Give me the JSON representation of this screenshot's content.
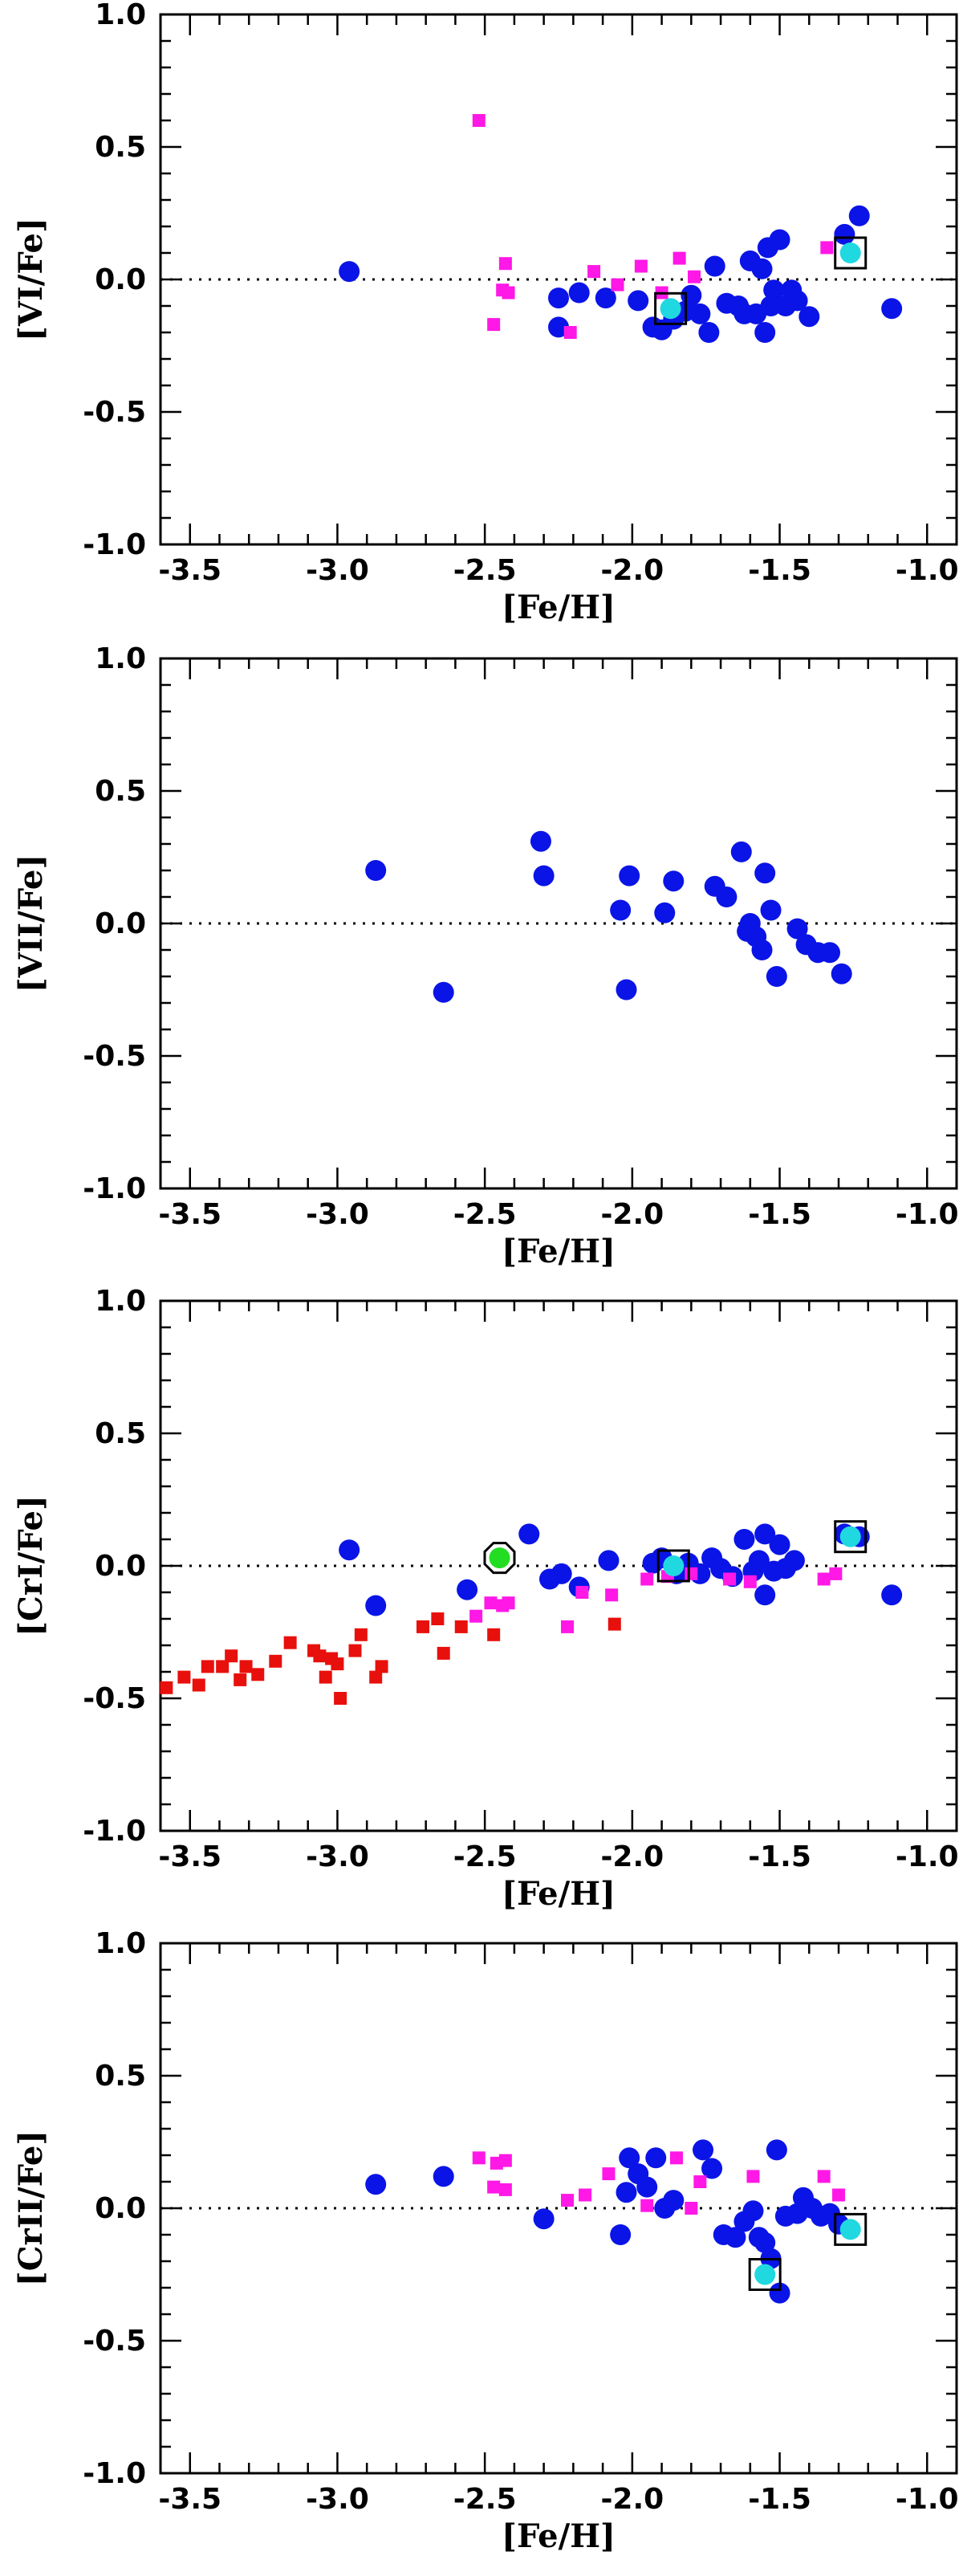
{
  "figure": {
    "panels_label": "Four stacked panels of abundance ratios vs [Fe/H]"
  },
  "chart_data": [
    {
      "type": "scatter",
      "xlabel": "[Fe/H]",
      "ylabel": "[VI/Fe]",
      "xlim": [
        -3.6,
        -0.9
      ],
      "ylim": [
        -1.0,
        1.0
      ],
      "xticks": [
        "-3.5",
        "-3.0",
        "-2.5",
        "-2.0",
        "-1.5",
        "-1.0"
      ],
      "yticks": [
        "1.0",
        "0.5",
        "0.0",
        "-0.5",
        "-1.0"
      ],
      "reference_line_y": 0.0,
      "series": [
        {
          "name": "",
          "marker": "circle",
          "color": "#0a14e6",
          "points": [
            [
              -2.96,
              0.03
            ],
            [
              -2.25,
              -0.07
            ],
            [
              -2.25,
              -0.18
            ],
            [
              -2.18,
              -0.05
            ],
            [
              -2.09,
              -0.07
            ],
            [
              -1.98,
              -0.08
            ],
            [
              -1.93,
              -0.18
            ],
            [
              -1.9,
              -0.19
            ],
            [
              -1.86,
              -0.15
            ],
            [
              -1.82,
              -0.12
            ],
            [
              -1.8,
              -0.06
            ],
            [
              -1.77,
              -0.13
            ],
            [
              -1.74,
              -0.2
            ],
            [
              -1.72,
              0.05
            ],
            [
              -1.68,
              -0.09
            ],
            [
              -1.64,
              -0.1
            ],
            [
              -1.62,
              -0.13
            ],
            [
              -1.6,
              0.07
            ],
            [
              -1.58,
              -0.13
            ],
            [
              -1.56,
              0.04
            ],
            [
              -1.55,
              -0.2
            ],
            [
              -1.54,
              0.12
            ],
            [
              -1.53,
              -0.1
            ],
            [
              -1.52,
              -0.04
            ],
            [
              -1.5,
              0.15
            ],
            [
              -1.48,
              -0.1
            ],
            [
              -1.46,
              -0.04
            ],
            [
              -1.44,
              -0.08
            ],
            [
              -1.4,
              -0.14
            ],
            [
              -1.28,
              0.17
            ],
            [
              -1.23,
              0.24
            ],
            [
              -1.12,
              -0.11
            ]
          ]
        },
        {
          "name": "",
          "marker": "small-square",
          "color": "#ff18e6",
          "points": [
            [
              -2.52,
              0.6
            ],
            [
              -2.47,
              -0.17
            ],
            [
              -2.44,
              -0.04
            ],
            [
              -2.43,
              0.06
            ],
            [
              -2.42,
              -0.05
            ],
            [
              -2.21,
              -0.2
            ],
            [
              -2.13,
              0.03
            ],
            [
              -2.05,
              -0.02
            ],
            [
              -1.97,
              0.05
            ],
            [
              -1.9,
              -0.05
            ],
            [
              -1.84,
              0.08
            ],
            [
              -1.79,
              0.01
            ],
            [
              -1.34,
              0.12
            ]
          ]
        },
        {
          "name": "",
          "marker": "cyan-boxed",
          "color": "#20d8e0",
          "points": [
            [
              -1.87,
              -0.11
            ],
            [
              -1.26,
              0.1
            ]
          ]
        }
      ]
    },
    {
      "type": "scatter",
      "xlabel": "[Fe/H]",
      "ylabel": "[VII/Fe]",
      "xlim": [
        -3.6,
        -0.9
      ],
      "ylim": [
        -1.0,
        1.0
      ],
      "xticks": [
        "-3.5",
        "-3.0",
        "-2.5",
        "-2.0",
        "-1.5",
        "-1.0"
      ],
      "yticks": [
        "1.0",
        "0.5",
        "0.0",
        "-0.5",
        "-1.0"
      ],
      "reference_line_y": 0.0,
      "series": [
        {
          "name": "",
          "marker": "circle",
          "color": "#0a14e6",
          "points": [
            [
              -2.87,
              0.2
            ],
            [
              -2.64,
              -0.26
            ],
            [
              -2.31,
              0.31
            ],
            [
              -2.3,
              0.18
            ],
            [
              -2.04,
              0.05
            ],
            [
              -2.02,
              -0.25
            ],
            [
              -2.01,
              0.18
            ],
            [
              -1.89,
              0.04
            ],
            [
              -1.86,
              0.16
            ],
            [
              -1.72,
              0.14
            ],
            [
              -1.68,
              0.1
            ],
            [
              -1.63,
              0.27
            ],
            [
              -1.61,
              -0.03
            ],
            [
              -1.6,
              0.0
            ],
            [
              -1.58,
              -0.05
            ],
            [
              -1.56,
              -0.1
            ],
            [
              -1.55,
              0.19
            ],
            [
              -1.53,
              0.05
            ],
            [
              -1.51,
              -0.2
            ],
            [
              -1.44,
              -0.02
            ],
            [
              -1.41,
              -0.08
            ],
            [
              -1.37,
              -0.11
            ],
            [
              -1.33,
              -0.11
            ],
            [
              -1.29,
              -0.19
            ]
          ]
        }
      ]
    },
    {
      "type": "scatter",
      "xlabel": "[Fe/H]",
      "ylabel": "[CrI/Fe]",
      "xlim": [
        -3.6,
        -0.9
      ],
      "ylim": [
        -1.0,
        1.0
      ],
      "xticks": [
        "-3.5",
        "-3.0",
        "-2.5",
        "-2.0",
        "-1.5",
        "-1.0"
      ],
      "yticks": [
        "1.0",
        "0.5",
        "0.0",
        "-0.5",
        "-1.0"
      ],
      "reference_line_y": 0.0,
      "series": [
        {
          "name": "",
          "marker": "circle",
          "color": "#0a14e6",
          "points": [
            [
              -2.96,
              0.06
            ],
            [
              -2.87,
              -0.15
            ],
            [
              -2.56,
              -0.09
            ],
            [
              -2.35,
              0.12
            ],
            [
              -2.28,
              -0.05
            ],
            [
              -2.24,
              -0.03
            ],
            [
              -2.18,
              -0.08
            ],
            [
              -2.08,
              0.02
            ],
            [
              -1.93,
              0.01
            ],
            [
              -1.9,
              0.03
            ],
            [
              -1.85,
              -0.03
            ],
            [
              -1.81,
              0.01
            ],
            [
              -1.77,
              -0.03
            ],
            [
              -1.73,
              0.03
            ],
            [
              -1.7,
              -0.01
            ],
            [
              -1.66,
              -0.04
            ],
            [
              -1.62,
              0.1
            ],
            [
              -1.59,
              -0.02
            ],
            [
              -1.57,
              0.02
            ],
            [
              -1.55,
              0.12
            ],
            [
              -1.55,
              -0.11
            ],
            [
              -1.52,
              -0.02
            ],
            [
              -1.5,
              0.08
            ],
            [
              -1.48,
              -0.01
            ],
            [
              -1.45,
              0.02
            ],
            [
              -1.28,
              0.12
            ],
            [
              -1.23,
              0.11
            ],
            [
              -1.12,
              -0.11
            ]
          ]
        },
        {
          "name": "",
          "marker": "small-square",
          "color": "#ff18e6",
          "points": [
            [
              -2.53,
              -0.19
            ],
            [
              -2.48,
              -0.14
            ],
            [
              -2.44,
              -0.15
            ],
            [
              -2.42,
              -0.14
            ],
            [
              -2.22,
              -0.23
            ],
            [
              -2.17,
              -0.1
            ],
            [
              -2.07,
              -0.11
            ],
            [
              -1.95,
              -0.05
            ],
            [
              -1.88,
              -0.04
            ],
            [
              -1.8,
              -0.03
            ],
            [
              -1.67,
              -0.05
            ],
            [
              -1.6,
              -0.06
            ],
            [
              -1.35,
              -0.05
            ],
            [
              -1.31,
              -0.03
            ]
          ]
        },
        {
          "name": "",
          "marker": "small-square",
          "color": "#e8100c",
          "points": [
            [
              -3.58,
              -0.46
            ],
            [
              -3.52,
              -0.42
            ],
            [
              -3.47,
              -0.45
            ],
            [
              -3.44,
              -0.38
            ],
            [
              -3.39,
              -0.38
            ],
            [
              -3.36,
              -0.34
            ],
            [
              -3.33,
              -0.43
            ],
            [
              -3.31,
              -0.38
            ],
            [
              -3.27,
              -0.41
            ],
            [
              -3.21,
              -0.36
            ],
            [
              -3.16,
              -0.29
            ],
            [
              -3.08,
              -0.32
            ],
            [
              -3.06,
              -0.34
            ],
            [
              -3.04,
              -0.42
            ],
            [
              -3.02,
              -0.35
            ],
            [
              -3.0,
              -0.37
            ],
            [
              -2.99,
              -0.5
            ],
            [
              -2.94,
              -0.32
            ],
            [
              -2.92,
              -0.26
            ],
            [
              -2.87,
              -0.42
            ],
            [
              -2.85,
              -0.38
            ],
            [
              -2.71,
              -0.23
            ],
            [
              -2.66,
              -0.2
            ],
            [
              -2.64,
              -0.33
            ],
            [
              -2.58,
              -0.23
            ],
            [
              -2.47,
              -0.26
            ],
            [
              -2.06,
              -0.22
            ]
          ]
        },
        {
          "name": "",
          "marker": "green-octagon",
          "color": "#22dd22",
          "points": [
            [
              -2.45,
              0.03
            ]
          ]
        },
        {
          "name": "",
          "marker": "cyan-boxed",
          "color": "#20d8e0",
          "points": [
            [
              -1.86,
              0.0
            ],
            [
              -1.26,
              0.11
            ]
          ]
        }
      ]
    },
    {
      "type": "scatter",
      "xlabel": "[Fe/H]",
      "ylabel": "[CrII/Fe]",
      "xlim": [
        -3.6,
        -0.9
      ],
      "ylim": [
        -1.0,
        1.0
      ],
      "xticks": [
        "-3.5",
        "-3.0",
        "-2.5",
        "-2.0",
        "-1.5",
        "-1.0"
      ],
      "yticks": [
        "1.0",
        "0.5",
        "0.0",
        "-0.5",
        "-1.0"
      ],
      "reference_line_y": 0.0,
      "series": [
        {
          "name": "",
          "marker": "circle",
          "color": "#0a14e6",
          "points": [
            [
              -2.87,
              0.09
            ],
            [
              -2.64,
              0.12
            ],
            [
              -2.3,
              -0.04
            ],
            [
              -2.04,
              -0.1
            ],
            [
              -2.02,
              0.06
            ],
            [
              -2.01,
              0.19
            ],
            [
              -1.98,
              0.13
            ],
            [
              -1.95,
              0.08
            ],
            [
              -1.92,
              0.19
            ],
            [
              -1.89,
              0.0
            ],
            [
              -1.86,
              0.03
            ],
            [
              -1.76,
              0.22
            ],
            [
              -1.73,
              0.15
            ],
            [
              -1.69,
              -0.1
            ],
            [
              -1.65,
              -0.11
            ],
            [
              -1.62,
              -0.05
            ],
            [
              -1.59,
              -0.01
            ],
            [
              -1.57,
              -0.11
            ],
            [
              -1.55,
              -0.13
            ],
            [
              -1.53,
              -0.19
            ],
            [
              -1.51,
              0.22
            ],
            [
              -1.5,
              -0.32
            ],
            [
              -1.48,
              -0.03
            ],
            [
              -1.44,
              -0.02
            ],
            [
              -1.42,
              0.04
            ],
            [
              -1.39,
              0.0
            ],
            [
              -1.36,
              -0.03
            ],
            [
              -1.33,
              -0.02
            ],
            [
              -1.3,
              -0.06
            ]
          ]
        },
        {
          "name": "",
          "marker": "small-square",
          "color": "#ff18e6",
          "points": [
            [
              -2.52,
              0.19
            ],
            [
              -2.47,
              0.08
            ],
            [
              -2.46,
              0.17
            ],
            [
              -2.43,
              0.07
            ],
            [
              -2.43,
              0.18
            ],
            [
              -2.22,
              0.03
            ],
            [
              -2.16,
              0.05
            ],
            [
              -2.08,
              0.13
            ],
            [
              -1.95,
              0.01
            ],
            [
              -1.85,
              0.19
            ],
            [
              -1.8,
              0.0
            ],
            [
              -1.77,
              0.1
            ],
            [
              -1.59,
              0.12
            ],
            [
              -1.35,
              0.12
            ],
            [
              -1.3,
              0.05
            ]
          ]
        },
        {
          "name": "",
          "marker": "cyan-boxed",
          "color": "#20d8e0",
          "points": [
            [
              -1.55,
              -0.25
            ],
            [
              -1.26,
              -0.08
            ]
          ]
        }
      ]
    }
  ]
}
